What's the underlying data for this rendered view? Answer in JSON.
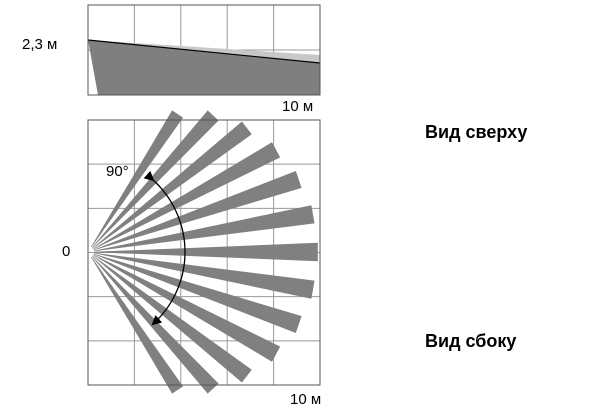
{
  "side_view": {
    "height_label": "2,3 м",
    "distance_label": "10 м"
  },
  "top_view": {
    "origin_label": "0",
    "angle_label": "90°",
    "distance_label": "10 м"
  },
  "captions": {
    "top": "Вид сверху",
    "bottom": "Вид сбоку"
  }
}
